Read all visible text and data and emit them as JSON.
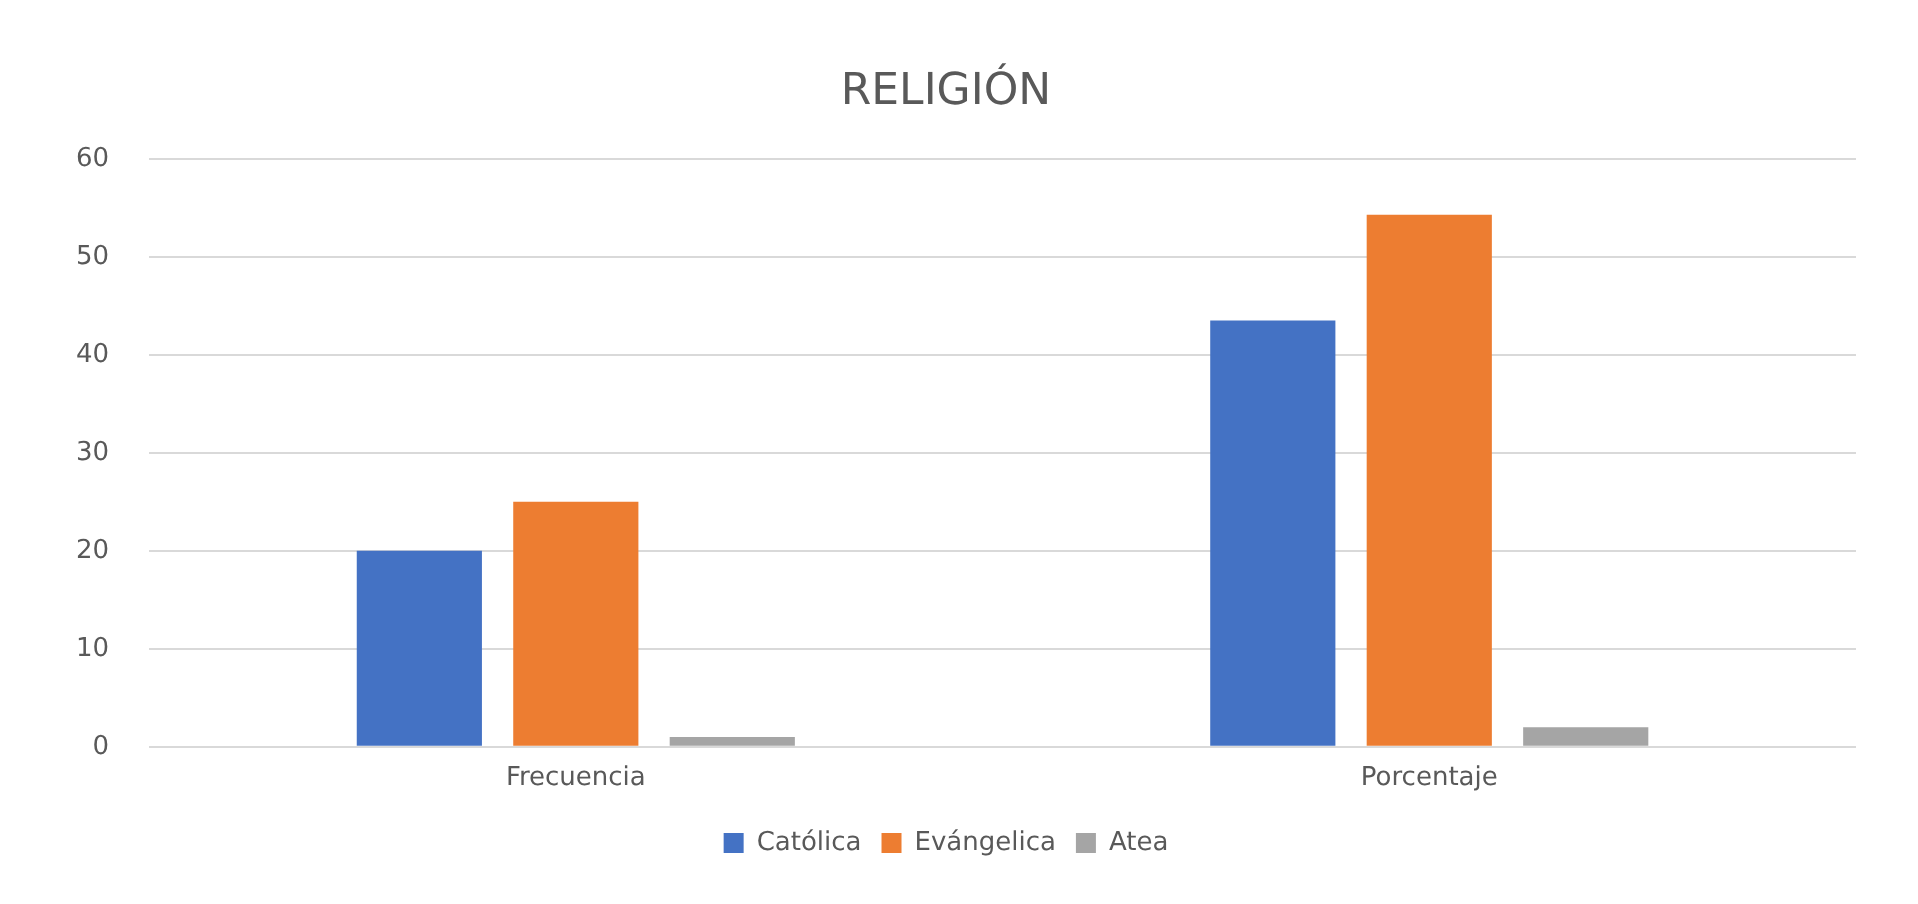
{
  "chart_data": {
    "type": "bar",
    "title": "RELIGIÓN",
    "categories": [
      "Frecuencia",
      "Porcentaje"
    ],
    "series": [
      {
        "name": "Católica",
        "color": "#4472c4",
        "values": [
          20,
          43.5
        ]
      },
      {
        "name": "Evángelica",
        "color": "#ed7d31",
        "values": [
          25,
          54.3
        ]
      },
      {
        "name": "Atea",
        "color": "#a5a5a5",
        "values": [
          1,
          2
        ]
      }
    ],
    "ylim": [
      0,
      60
    ],
    "yticks": [
      0,
      10,
      20,
      30,
      40,
      50,
      60
    ],
    "grid": "y",
    "legend": "bottom"
  }
}
